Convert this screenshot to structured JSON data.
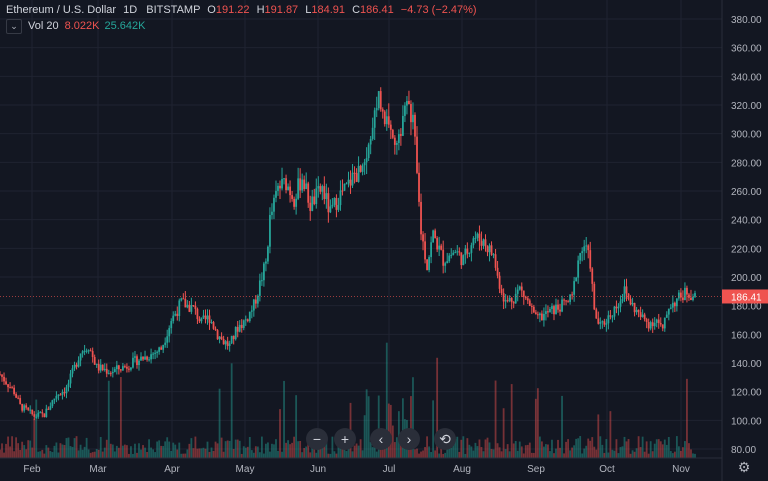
{
  "header": {
    "symbol": "Ethereum / U.S. Dollar",
    "interval": "1D",
    "exchange": "BITSTAMP",
    "o_label": "O",
    "o_value": "191.22",
    "h_label": "H",
    "h_value": "191.87",
    "l_label": "L",
    "l_value": "184.91",
    "c_label": "C",
    "c_value": "186.41",
    "change": "−4.73 (−2.47%)"
  },
  "volume": {
    "label": "Vol 20",
    "value": "8.022K",
    "ma_value": "25.642K",
    "collapse_icon": "chevron-down-icon"
  },
  "toolbar": {
    "zoom_out": "−",
    "zoom_in": "+",
    "scroll_left": "‹",
    "scroll_right": "›",
    "reset": "⟲"
  },
  "settings_icon": "gear-icon",
  "colors": {
    "up": "#26a69a",
    "down": "#ef5350",
    "background": "#131722",
    "grid": "#1f2331",
    "axis_text": "#b2b5be",
    "last_price_bg": "#ef5350"
  },
  "chart_data": {
    "type": "candlestick",
    "last_price": "186.41",
    "y_ticks": [
      "380.00",
      "360.00",
      "340.00",
      "320.00",
      "300.00",
      "280.00",
      "260.00",
      "240.00",
      "220.00",
      "200.00",
      "180.00",
      "160.00",
      "140.00",
      "120.00",
      "100.00",
      "80.00"
    ],
    "y_range": [
      73,
      388
    ],
    "x_ticks": [
      "Feb",
      "Mar",
      "Apr",
      "May",
      "Jun",
      "Jul",
      "Aug",
      "Sep",
      "Oct",
      "Nov"
    ],
    "grid": true,
    "price_path": [
      [
        0,
        132
      ],
      [
        7,
        120
      ],
      [
        10,
        110
      ],
      [
        17,
        103
      ],
      [
        22,
        104
      ],
      [
        28,
        118
      ],
      [
        33,
        122
      ],
      [
        40,
        148
      ],
      [
        44,
        152
      ],
      [
        48,
        137
      ],
      [
        55,
        134
      ],
      [
        63,
        138
      ],
      [
        68,
        142
      ],
      [
        75,
        146
      ],
      [
        80,
        150
      ],
      [
        85,
        170
      ],
      [
        90,
        182
      ],
      [
        96,
        178
      ],
      [
        100,
        168
      ],
      [
        104,
        172
      ],
      [
        108,
        160
      ],
      [
        111,
        155
      ],
      [
        114,
        152
      ],
      [
        118,
        165
      ],
      [
        122,
        170
      ],
      [
        126,
        180
      ],
      [
        132,
        210
      ],
      [
        134,
        240
      ],
      [
        138,
        262
      ],
      [
        142,
        266
      ],
      [
        146,
        255
      ],
      [
        150,
        270
      ],
      [
        154,
        250
      ],
      [
        160,
        262
      ],
      [
        164,
        244
      ],
      [
        168,
        256
      ],
      [
        172,
        262
      ],
      [
        176,
        272
      ],
      [
        180,
        272
      ],
      [
        185,
        300
      ],
      [
        188,
        330
      ],
      [
        191,
        312
      ],
      [
        194,
        296
      ],
      [
        198,
        300
      ],
      [
        202,
        318
      ],
      [
        205,
        312
      ],
      [
        207,
        270
      ],
      [
        209,
        232
      ],
      [
        212,
        208
      ],
      [
        215,
        230
      ],
      [
        220,
        212
      ],
      [
        226,
        218
      ],
      [
        230,
        212
      ],
      [
        235,
        228
      ],
      [
        240,
        225
      ],
      [
        245,
        215
      ],
      [
        247,
        200
      ],
      [
        251,
        182
      ],
      [
        255,
        186
      ],
      [
        258,
        192
      ],
      [
        263,
        180
      ],
      [
        266,
        170
      ],
      [
        272,
        175
      ],
      [
        279,
        180
      ],
      [
        284,
        185
      ],
      [
        287,
        213
      ],
      [
        290,
        222
      ],
      [
        293,
        210
      ],
      [
        295,
        175
      ],
      [
        298,
        165
      ],
      [
        302,
        172
      ],
      [
        306,
        180
      ],
      [
        310,
        190
      ],
      [
        314,
        180
      ],
      [
        318,
        172
      ],
      [
        322,
        168
      ],
      [
        326,
        170
      ],
      [
        329,
        162
      ],
      [
        332,
        180
      ],
      [
        337,
        185
      ],
      [
        341,
        190
      ],
      [
        345,
        186
      ]
    ],
    "volume_series": "volume bars mostly low with spikes near late Mar, mid May, late Jun and late Sep"
  }
}
